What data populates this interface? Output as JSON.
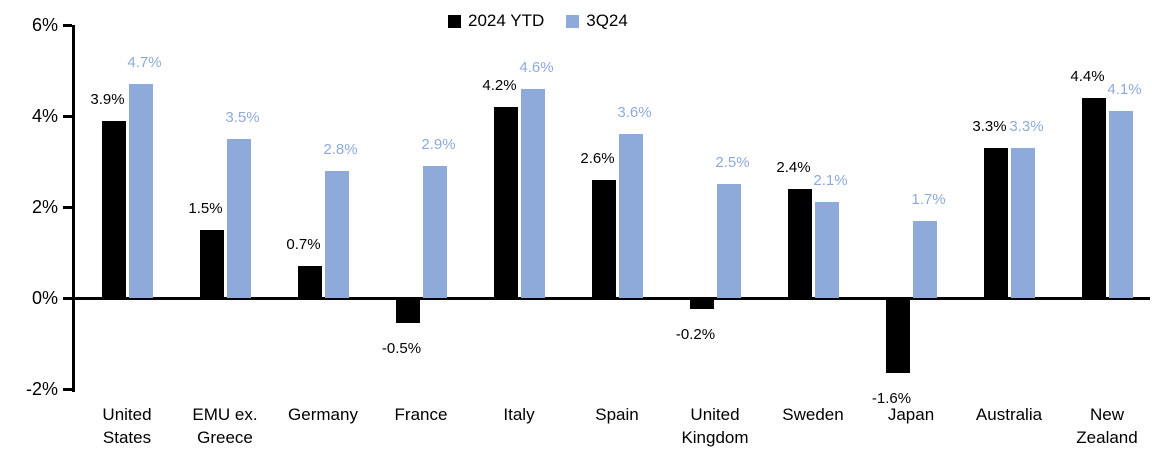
{
  "legend": {
    "items": [
      {
        "label": "2024 YTD",
        "color": "#000000"
      },
      {
        "label": "3Q24",
        "color": "#8EAADB"
      }
    ]
  },
  "chart_data": {
    "type": "bar",
    "title": "",
    "categories": [
      "United States",
      "EMU ex. Greece",
      "Germany",
      "France",
      "Italy",
      "Spain",
      "United Kingdom",
      "Sweden",
      "Japan",
      "Australia",
      "New Zealand"
    ],
    "series": [
      {
        "name": "2024 YTD",
        "color": "#000000",
        "values": [
          3.9,
          1.5,
          0.7,
          -0.5,
          4.2,
          2.6,
          -0.2,
          2.4,
          -1.6,
          3.3,
          4.4
        ]
      },
      {
        "name": "3Q24",
        "color": "#8EAADB",
        "values": [
          4.7,
          3.5,
          2.8,
          2.9,
          4.6,
          3.6,
          2.5,
          2.1,
          1.7,
          3.3,
          4.1
        ]
      }
    ],
    "data_label_suffix": "%",
    "y_axis": {
      "min": -2,
      "max": 6,
      "ticks": [
        {
          "label": "6%",
          "value": 6
        },
        {
          "label": "4%",
          "value": 4
        },
        {
          "label": "2%",
          "value": 2
        },
        {
          "label": "0%",
          "value": 0
        },
        {
          "label": "-2%",
          "value": -2
        }
      ]
    },
    "grid": false,
    "legend_position": "top-center"
  }
}
